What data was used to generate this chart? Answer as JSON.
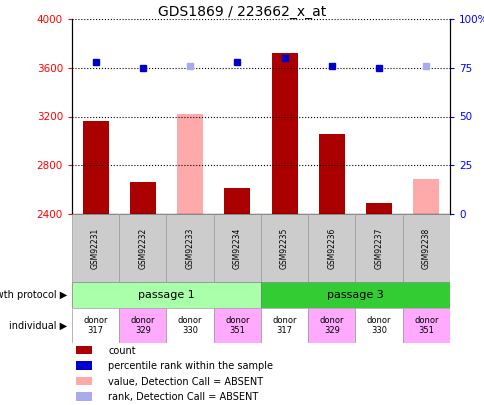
{
  "title": "GDS1869 / 223662_x_at",
  "samples": [
    "GSM92231",
    "GSM92232",
    "GSM92233",
    "GSM92234",
    "GSM92235",
    "GSM92236",
    "GSM92237",
    "GSM92238"
  ],
  "bar_values": [
    3160,
    2660,
    3220,
    2610,
    3720,
    3060,
    2490,
    2690
  ],
  "bar_absent": [
    false,
    false,
    true,
    false,
    false,
    false,
    false,
    true
  ],
  "percentile_values": [
    78,
    75,
    76,
    78,
    80,
    76,
    75,
    76
  ],
  "percentile_absent": [
    false,
    false,
    true,
    false,
    false,
    false,
    false,
    true
  ],
  "ylim_left": [
    2400,
    4000
  ],
  "ylim_right": [
    0,
    100
  ],
  "yticks_left": [
    2400,
    2800,
    3200,
    3600,
    4000
  ],
  "yticks_right": [
    0,
    25,
    50,
    75,
    100
  ],
  "bar_color_present": "#aa0000",
  "bar_color_absent": "#ffaaaa",
  "dot_color_present": "#0000cc",
  "dot_color_absent": "#aaaaee",
  "growth_protocol_labels": [
    "passage 1",
    "passage 3"
  ],
  "growth_protocol_colors": [
    "#aaffaa",
    "#33cc33"
  ],
  "individual_colors": [
    "#ffffff",
    "#ffaaff",
    "#ffffff",
    "#ffaaff",
    "#ffffff",
    "#ffaaff",
    "#ffffff",
    "#ffaaff"
  ],
  "individual_labels": [
    "donor\n317",
    "donor\n329",
    "donor\n330",
    "donor\n351",
    "donor\n317",
    "donor\n329",
    "donor\n330",
    "donor\n351"
  ],
  "legend_items": [
    "count",
    "percentile rank within the sample",
    "value, Detection Call = ABSENT",
    "rank, Detection Call = ABSENT"
  ],
  "legend_colors": [
    "#aa0000",
    "#0000cc",
    "#ffaaaa",
    "#aaaaee"
  ]
}
